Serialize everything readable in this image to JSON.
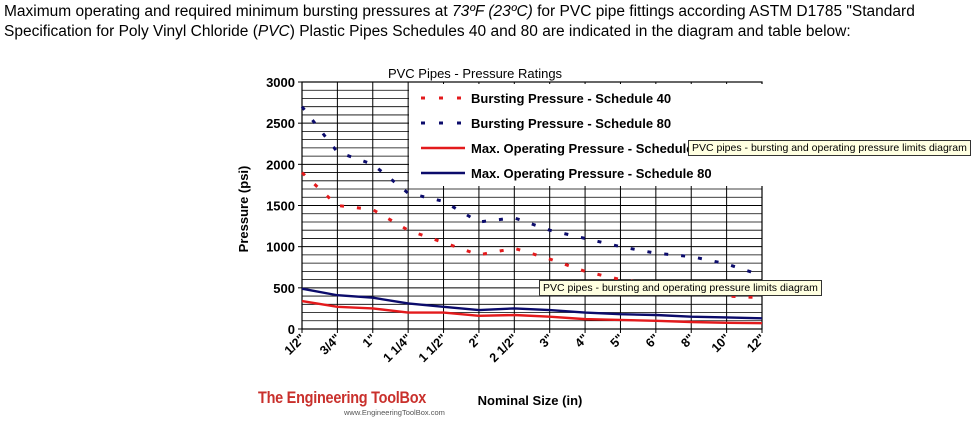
{
  "intro": {
    "part1": "Maximum operating and required minimum bursting pressures at ",
    "temp": "73ºF (23ºC)",
    "part2": " for PVC pipe fittings according ASTM D1785 \"Standard Specification for Poly Vinyl Chloride (",
    "pvc": "PVC",
    "part3": ") Plastic Pipes Schedules 40 and 80 are indicated in the diagram and table below:"
  },
  "tooltips": {
    "top": "PVC pipes - bursting and operating pressure limits diagram",
    "bottom": "PVC pipes - bursting and operating pressure limits diagram"
  },
  "logo": {
    "brand": "The Engineering ToolBox",
    "url": "www.EngineeringToolBox.com"
  },
  "colors": {
    "red": "#e31a1c",
    "navy": "#0b0b6b"
  },
  "chart_data": {
    "type": "line",
    "title": "PVC Pipes - Pressure Ratings",
    "xlabel": "Nominal Size (in)",
    "ylabel": "Pressure (psi)",
    "ylim": [
      0,
      3000
    ],
    "yticks": [
      0,
      500,
      1000,
      1500,
      2000,
      2500,
      3000
    ],
    "categories": [
      "1/2\"",
      "3/4\"",
      "1\"",
      "1 1/4\"",
      "1 1/2\"",
      "2\"",
      "2 1/2\"",
      "3\"",
      "4\"",
      "5\"",
      "6\"",
      "8\"",
      "10\"",
      "12\""
    ],
    "grid": true,
    "legend_position": "top-right",
    "series": [
      {
        "name": "Bursting Pressure - Schedule 40",
        "style": "dashed",
        "color": "#e31a1c",
        "values": [
          1900,
          1500,
          1450,
          1200,
          1050,
          900,
          980,
          850,
          700,
          600,
          540,
          480,
          400,
          380
        ]
      },
      {
        "name": "Bursting Pressure - Schedule 80",
        "style": "dashed",
        "color": "#0b0b6b",
        "values": [
          2700,
          2150,
          2000,
          1650,
          1550,
          1300,
          1350,
          1200,
          1100,
          1000,
          920,
          880,
          790,
          650
        ]
      },
      {
        "name": "Max. Operating Pressure - Schedule 40",
        "style": "solid",
        "color": "#e31a1c",
        "values": [
          340,
          270,
          250,
          200,
          200,
          160,
          170,
          150,
          120,
          110,
          100,
          85,
          75,
          70
        ]
      },
      {
        "name": "Max. Operating Pressure - Schedule 80",
        "style": "solid",
        "color": "#0b0b6b",
        "values": [
          490,
          410,
          380,
          310,
          270,
          230,
          250,
          230,
          200,
          180,
          170,
          150,
          140,
          130
        ]
      }
    ]
  }
}
